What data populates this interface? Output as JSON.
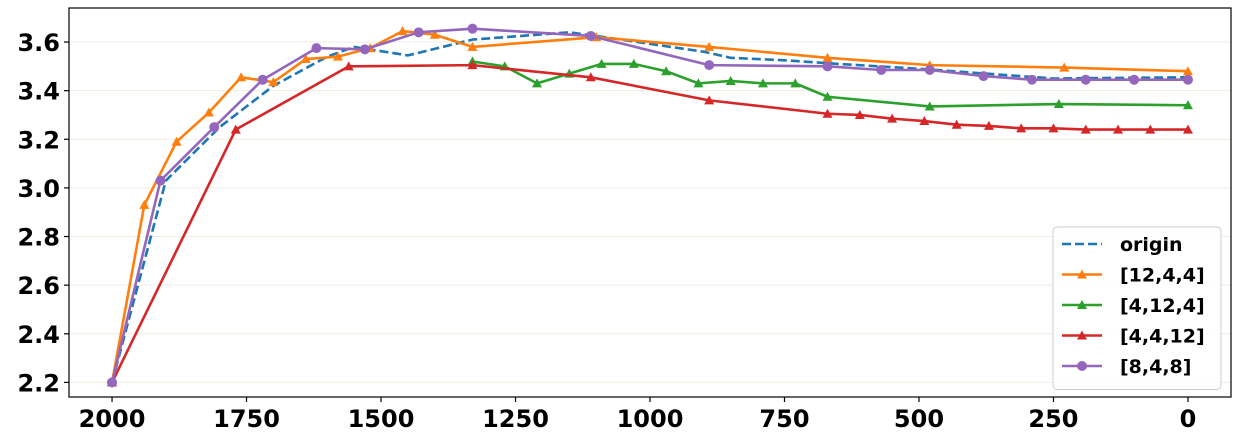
{
  "chart_data": {
    "type": "line",
    "title": "",
    "xlabel": "",
    "ylabel": "",
    "xlim": [
      2080,
      -80
    ],
    "ylim": [
      2.14,
      3.74
    ],
    "x_ticks": [
      2000,
      1750,
      1500,
      1250,
      1000,
      750,
      500,
      250,
      0
    ],
    "y_ticks": [
      2.2,
      2.4,
      2.6,
      2.8,
      3.0,
      3.2,
      3.4,
      3.6
    ],
    "grid": "horizontal",
    "legend": "bottom-right",
    "series": [
      {
        "name": "origin",
        "color": "#1f77b4",
        "dash": "dashed",
        "marker": "none",
        "x": [
          2000,
          1900,
          1800,
          1700,
          1600,
          1550,
          1450,
          1330,
          1150,
          1100,
          900,
          850,
          750,
          650,
          500,
          250,
          0
        ],
        "y": [
          2.2,
          3.03,
          3.25,
          3.42,
          3.54,
          3.58,
          3.545,
          3.61,
          3.64,
          3.625,
          3.56,
          3.535,
          3.525,
          3.51,
          3.49,
          3.45,
          3.455
        ]
      },
      {
        "name": "[12,4,4]",
        "color": "#ff7f0e",
        "dash": "solid",
        "marker": "triangle",
        "x": [
          2000,
          1940,
          1880,
          1820,
          1760,
          1700,
          1640,
          1580,
          1520,
          1460,
          1400,
          1330,
          1100,
          890,
          670,
          480,
          230,
          0
        ],
        "y": [
          2.2,
          2.93,
          3.19,
          3.31,
          3.455,
          3.435,
          3.53,
          3.54,
          3.575,
          3.645,
          3.63,
          3.58,
          3.62,
          3.58,
          3.535,
          3.505,
          3.495,
          3.48
        ]
      },
      {
        "name": "[4,12,4]",
        "color": "#2ca02c",
        "dash": "solid",
        "marker": "triangle",
        "x": [
          1330,
          1270,
          1210,
          1150,
          1090,
          1030,
          970,
          910,
          850,
          790,
          730,
          670,
          480,
          240,
          0
        ],
        "y": [
          3.52,
          3.5,
          3.43,
          3.47,
          3.51,
          3.51,
          3.48,
          3.43,
          3.44,
          3.43,
          3.43,
          3.375,
          3.335,
          3.345,
          3.34
        ]
      },
      {
        "name": "[4,4,12]",
        "color": "#d62728",
        "dash": "solid",
        "marker": "triangle",
        "x": [
          2000,
          1770,
          1560,
          1330,
          1110,
          890,
          670,
          610,
          550,
          490,
          430,
          370,
          310,
          250,
          190,
          130,
          70,
          0
        ],
        "y": [
          2.2,
          3.24,
          3.5,
          3.505,
          3.455,
          3.36,
          3.305,
          3.3,
          3.285,
          3.275,
          3.26,
          3.255,
          3.245,
          3.245,
          3.24,
          3.24,
          3.24,
          3.24
        ]
      },
      {
        "name": "[8,4,8]",
        "color": "#9467bd",
        "dash": "solid",
        "marker": "circle",
        "x": [
          2000,
          1910,
          1810,
          1720,
          1620,
          1530,
          1430,
          1330,
          1110,
          890,
          670,
          570,
          480,
          380,
          290,
          190,
          100,
          0
        ],
        "y": [
          2.2,
          3.03,
          3.25,
          3.445,
          3.575,
          3.57,
          3.64,
          3.655,
          3.625,
          3.505,
          3.5,
          3.485,
          3.485,
          3.46,
          3.445,
          3.445,
          3.445,
          3.445
        ]
      }
    ]
  }
}
